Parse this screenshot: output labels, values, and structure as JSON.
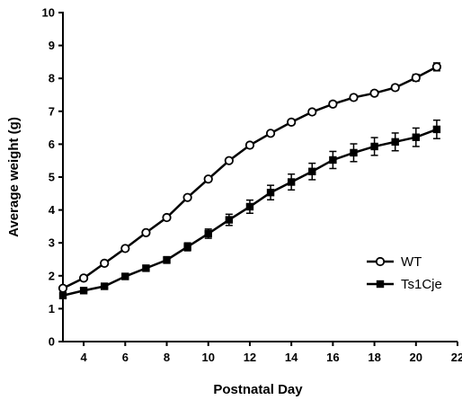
{
  "chart_data": {
    "type": "line",
    "xlabel": "Postnatal Day",
    "ylabel": "Average weight (g)",
    "xlim": [
      3,
      22
    ],
    "ylim": [
      0,
      10
    ],
    "x_ticks": [
      4,
      6,
      8,
      10,
      12,
      14,
      16,
      18,
      20,
      22
    ],
    "y_ticks": [
      0,
      1,
      2,
      3,
      4,
      5,
      6,
      7,
      8,
      9,
      10
    ],
    "grid": false,
    "legend_position": "bottom-right",
    "x": [
      3,
      4,
      5,
      6,
      7,
      8,
      9,
      10,
      11,
      12,
      13,
      14,
      15,
      16,
      17,
      18,
      19,
      20,
      21
    ],
    "series": [
      {
        "name": "WT",
        "marker": "open-circle",
        "color": "#000000",
        "values": [
          1.62,
          1.93,
          2.38,
          2.83,
          3.31,
          3.77,
          4.38,
          4.94,
          5.5,
          5.97,
          6.33,
          6.67,
          6.98,
          7.22,
          7.42,
          7.55,
          7.72,
          8.02,
          8.35
        ],
        "errors": [
          0.05,
          0.05,
          0.06,
          0.06,
          0.06,
          0.07,
          0.07,
          0.07,
          0.07,
          0.07,
          0.07,
          0.07,
          0.07,
          0.08,
          0.08,
          0.08,
          0.08,
          0.1,
          0.12
        ]
      },
      {
        "name": "Ts1Cje",
        "marker": "filled-square",
        "color": "#000000",
        "values": [
          1.4,
          1.55,
          1.68,
          1.98,
          2.23,
          2.48,
          2.88,
          3.28,
          3.7,
          4.1,
          4.53,
          4.85,
          5.17,
          5.52,
          5.74,
          5.93,
          6.07,
          6.21,
          6.45
        ],
        "errors": [
          0.05,
          0.05,
          0.06,
          0.07,
          0.08,
          0.1,
          0.12,
          0.14,
          0.17,
          0.2,
          0.22,
          0.24,
          0.25,
          0.26,
          0.27,
          0.27,
          0.27,
          0.28,
          0.28
        ]
      }
    ]
  }
}
